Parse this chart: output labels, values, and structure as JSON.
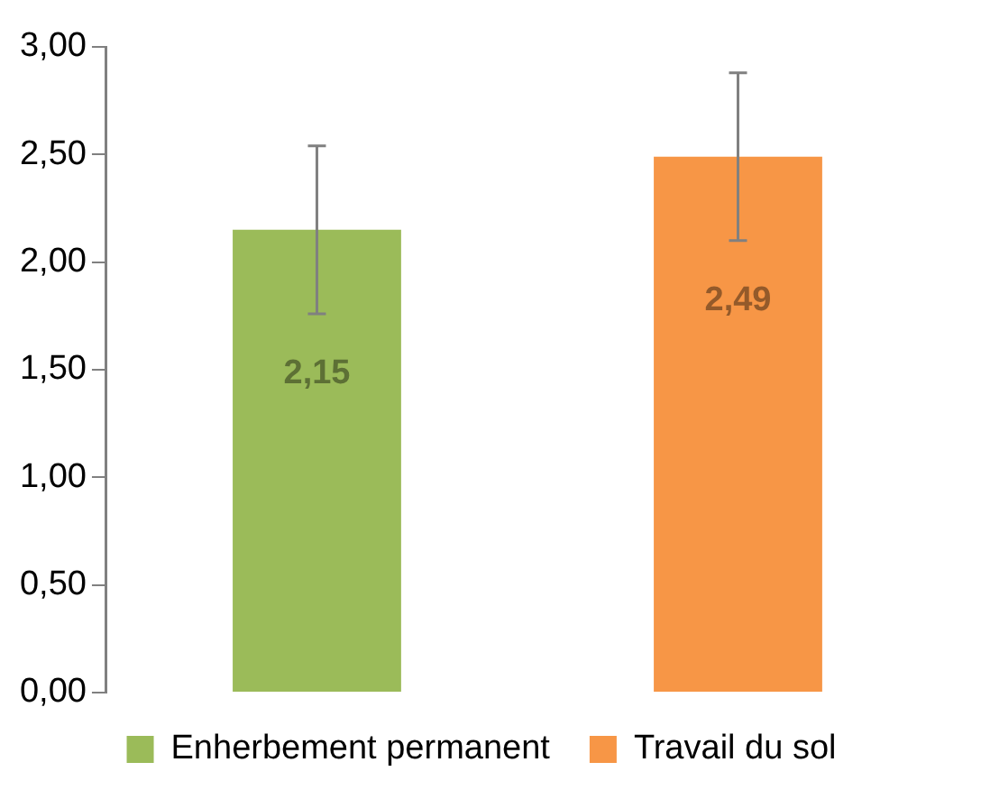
{
  "chart_data": {
    "type": "bar",
    "categories": [
      null,
      null
    ],
    "stacked": true,
    "series": [
      {
        "name": "Enherbement permanent",
        "color": "#9bbb59",
        "values": [
          2.15,
          null
        ],
        "errors": [
          0.39,
          null
        ],
        "value_labels": [
          "2,15",
          null
        ]
      },
      {
        "name": "Travail du sol",
        "color": "#f79646",
        "values": [
          null,
          2.49
        ],
        "errors": [
          null,
          0.39
        ],
        "value_labels": [
          null,
          "2,49"
        ]
      }
    ],
    "ylim": [
      0,
      3
    ],
    "yticks": [
      {
        "value": 0,
        "label": "0,00"
      },
      {
        "value": 0.5,
        "label": "0,50"
      },
      {
        "value": 1,
        "label": "1,00"
      },
      {
        "value": 1.5,
        "label": "1,50"
      },
      {
        "value": 2,
        "label": "2,00"
      },
      {
        "value": 2.5,
        "label": "2,50"
      },
      {
        "value": 3,
        "label": "3,00"
      }
    ],
    "tick_labels": "y",
    "grid": false,
    "legend": "bottom"
  }
}
